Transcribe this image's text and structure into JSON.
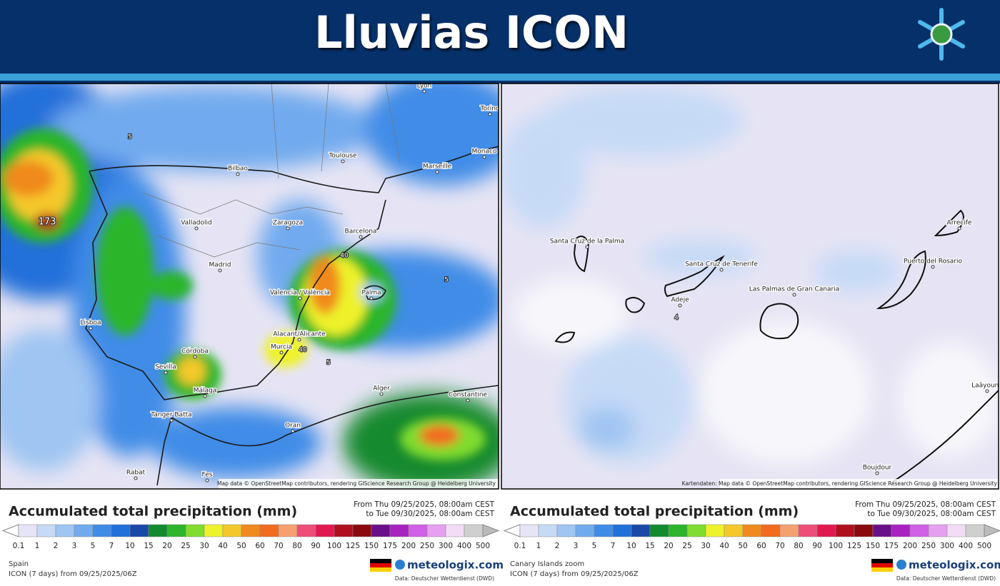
{
  "header": {
    "title": "Lluvias ICON"
  },
  "panels": [
    {
      "region": "Spain",
      "map": {
        "cities": [
          "Lyon",
          "Torino",
          "Toulouse",
          "Monaco",
          "Bilbao",
          "Marseille",
          "Valladolid",
          "Zaragoza",
          "Barcelona",
          "Madrid",
          "Valencia / València",
          "Palma",
          "Lisboa",
          "Alacant/Alicante",
          "Murcia",
          "Córdoba",
          "Sevilla",
          "Málaga",
          "Alger",
          "Constantine",
          "Tanger Batta",
          "Oran",
          "Rabat",
          "Fes"
        ],
        "values": [
          173,
          40,
          40,
          5,
          5,
          5
        ],
        "attribution": "Map data © OpenStreetMap contributors, rendering GIScience Research Group @ Heidelberg University"
      },
      "legend": {
        "title": "Accumulated total precipitation (mm)",
        "from": "From Thu 09/25/2025, 08:00am CEST",
        "to": "to Tue 09/30/2025, 08:00am CEST"
      },
      "model": "ICON (7 days) from 09/25/2025/06Z",
      "brand": "meteologix.com",
      "source": "Data: Deutscher Wetterdienst (DWD)"
    },
    {
      "region": "Canary Islands zoom",
      "map": {
        "cities": [
          "Santa Cruz de la Palma",
          "Santa Cruz de Tenerife",
          "Las Palmas de Gran Canaria",
          "Arrecife",
          "Puerto del Rosario",
          "Adeje",
          "Laâyoune",
          "Boujdour"
        ],
        "values": [
          4
        ],
        "attribution": "Kartendaten: Map data © OpenStreetMap contributors, rendering GIScience Research Group @ Heidelberg University"
      },
      "legend": {
        "title": "Accumulated total precipitation (mm)",
        "from": "From Thu 09/25/2025, 08:00am CEST",
        "to": "to Tue 09/30/2025, 08:00am CEST"
      },
      "model": "ICON (7 days) from 09/25/2025/06Z",
      "brand": "meteologix.com",
      "source": "Data: Deutscher Wetterdienst (DWD)"
    }
  ],
  "scale": {
    "ticks": [
      0.1,
      1,
      2,
      3,
      5,
      7,
      10,
      15,
      20,
      25,
      30,
      40,
      50,
      60,
      70,
      80,
      90,
      100,
      125,
      150,
      175,
      200,
      250,
      300,
      400,
      500
    ],
    "colors": [
      "#e6e4f7",
      "#c6daf6",
      "#9fc5f2",
      "#71aaee",
      "#3f8ce7",
      "#2070d9",
      "#1a48a8",
      "#138a2e",
      "#2cb52c",
      "#80dc2e",
      "#eef22a",
      "#f4c82a",
      "#f08a1e",
      "#f26c20",
      "#f6a070",
      "#ee4d7a",
      "#e01a50",
      "#b0101e",
      "#8a0a10",
      "#6a0f8a",
      "#a822c0",
      "#d060e6",
      "#e6a0f0",
      "#f2dcf6",
      "#cfcfcf"
    ]
  }
}
